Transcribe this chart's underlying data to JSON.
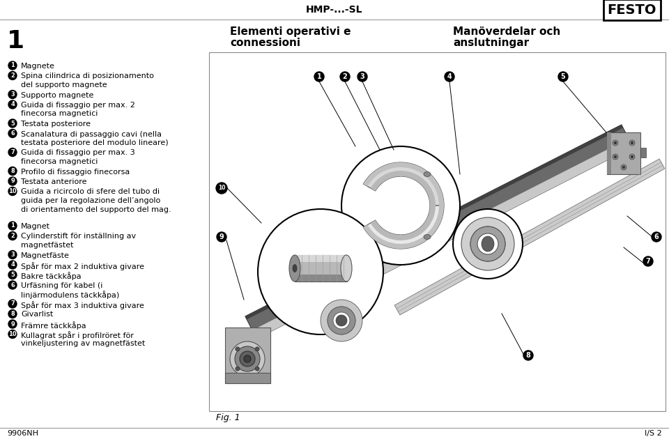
{
  "bg_color": "#ffffff",
  "header_text": "HMP-...-SL",
  "festo_text": "FESTO",
  "col2_title_line1": "Elementi operativi e",
  "col2_title_line2": "connessioni",
  "col3_title_line1": "Manöverdelar och",
  "col3_title_line2": "anslutningar",
  "italian_items": [
    [
      "Magnete"
    ],
    [
      "Spina cilindrica di posizionamento",
      "del supporto magnete"
    ],
    [
      "Supporto magnete"
    ],
    [
      "Guida di fissaggio per max. 2",
      "finecorsa magnetici"
    ],
    [
      "Testata posteriore"
    ],
    [
      "Scanalatura di passaggio cavi (nella",
      "testata posteriore del modulo lineare)"
    ],
    [
      "Guida di fissaggio per max. 3",
      "finecorsa magnetici"
    ],
    [
      "Profilo di fissaggio finecorsa"
    ],
    [
      "Testata anteriore"
    ],
    [
      "Guida a ricircolo di sfere del tubo di",
      "guida per la regolazione dell’angolo",
      "di orientamento del supporto del mag."
    ]
  ],
  "swedish_items": [
    [
      "Magnet"
    ],
    [
      "Cylinderstift för inställning av",
      "magnetfästet"
    ],
    [
      "Magnetfäste"
    ],
    [
      "Spår för max 2 induktiva givare"
    ],
    [
      "Bakre täckkåpa"
    ],
    [
      "Urfäsning för kabel (i",
      "linjärmodulens täckkåpa)"
    ],
    [
      "Spår för max 3 induktiva givare"
    ],
    [
      "Givarlist"
    ],
    [
      "Främre täckkåpa"
    ],
    [
      "Kullagrat spår i profilröret för",
      "vinkeljustering av magnetfästet"
    ]
  ],
  "fig_label": "Fig. 1",
  "footer_left": "9906NH",
  "footer_right": "I/S 2",
  "text_color": "#000000"
}
